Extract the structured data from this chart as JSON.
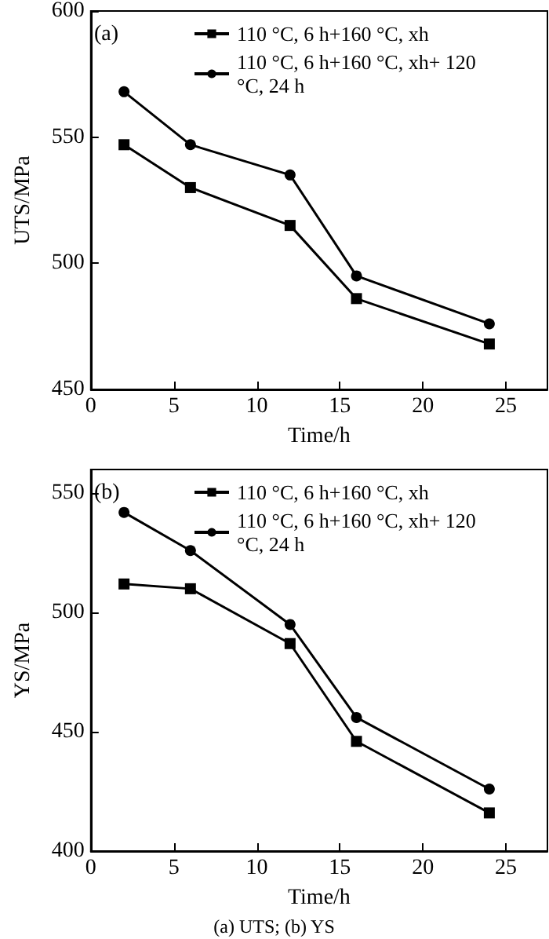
{
  "chart_data": [
    {
      "type": "line",
      "xlabel": "Time/h",
      "ylabel": "UTS/MPa",
      "x": [
        2,
        6,
        12,
        16,
        24
      ],
      "xlim": [
        0,
        27.5
      ],
      "xticks": [
        0,
        5,
        10,
        15,
        20,
        25
      ],
      "ylim": [
        450,
        600
      ],
      "yticks": [
        450,
        500,
        550,
        600
      ],
      "legend": "top right",
      "line_style": "solid",
      "grid": false,
      "annotations": [
        "(a)"
      ],
      "series": [
        {
          "name": "110 °C, 6 h+160 °C, xh",
          "color": "#000000",
          "marker": "square",
          "values": [
            547,
            530,
            515,
            486,
            468
          ]
        },
        {
          "name": "110 °C, 6 h+160 °C, xh+ 120 °C, 24 h",
          "color": "#000000",
          "marker": "circle",
          "values": [
            568,
            547,
            535,
            495,
            476
          ]
        }
      ]
    },
    {
      "type": "line",
      "xlabel": "Time/h",
      "ylabel": "YS/MPa",
      "x": [
        2,
        6,
        12,
        16,
        24
      ],
      "xlim": [
        0,
        27.5
      ],
      "xticks": [
        0,
        5,
        10,
        15,
        20,
        25
      ],
      "ylim": [
        400,
        560
      ],
      "yticks": [
        400,
        450,
        500,
        550
      ],
      "legend": "top right",
      "line_style": "solid",
      "grid": false,
      "annotations": [
        "(b)",
        "(a) UTS; (b) YS"
      ],
      "series": [
        {
          "name": "110 °C, 6 h+160 °C, xh",
          "color": "#000000",
          "marker": "square",
          "values": [
            512,
            510,
            487,
            446,
            416
          ]
        },
        {
          "name": "110 °C, 6 h+160 °C, xh+ 120 °C, 24 h",
          "color": "#000000",
          "marker": "circle",
          "values": [
            542,
            526,
            495,
            456,
            426
          ]
        }
      ]
    }
  ]
}
